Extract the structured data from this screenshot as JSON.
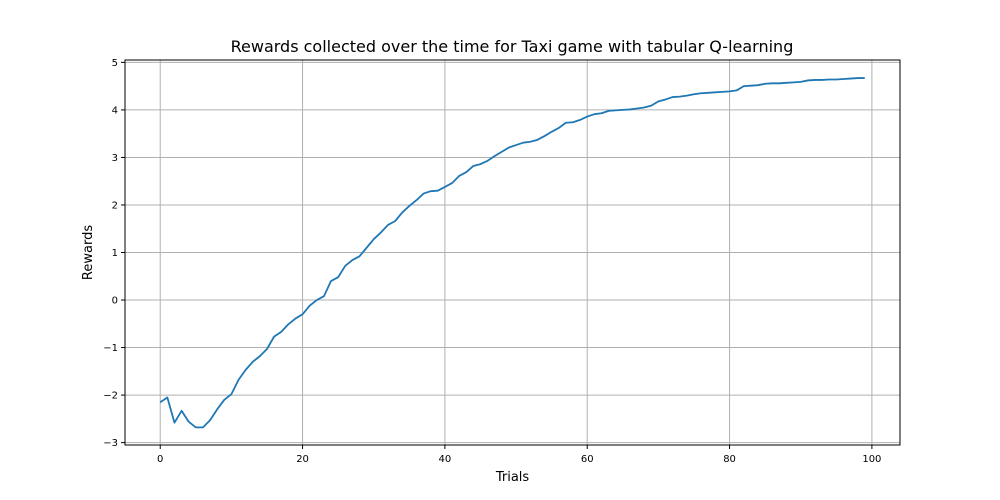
{
  "chart_data": {
    "type": "line",
    "title": "Rewards collected over the time for Taxi game with tabular Q-learning",
    "xlabel": "Trials",
    "ylabel": "Rewards",
    "xlim": [
      -4.95,
      103.95
    ],
    "ylim": [
      -3.05,
      5.05
    ],
    "xticks": [
      0,
      20,
      40,
      60,
      80,
      100
    ],
    "xtick_labels": [
      "0",
      "20",
      "40",
      "60",
      "80",
      "100"
    ],
    "yticks": [
      -3,
      -2,
      -1,
      0,
      1,
      2,
      3,
      4,
      5
    ],
    "ytick_labels": [
      "−3",
      "−2",
      "−1",
      "0",
      "1",
      "2",
      "3",
      "4",
      "5"
    ],
    "grid": true,
    "legend": "none",
    "series": [
      {
        "color": "#1f77b4",
        "x": [
          0,
          1,
          2,
          3,
          4,
          5,
          6,
          7,
          8,
          9,
          10,
          11,
          12,
          13,
          14,
          15,
          16,
          17,
          18,
          19,
          20,
          21,
          22,
          23,
          24,
          25,
          26,
          27,
          28,
          29,
          30,
          31,
          32,
          33,
          34,
          35,
          36,
          37,
          38,
          39,
          40,
          41,
          42,
          43,
          44,
          45,
          46,
          47,
          48,
          49,
          50,
          51,
          52,
          53,
          54,
          55,
          56,
          57,
          58,
          59,
          60,
          61,
          62,
          63,
          64,
          65,
          66,
          67,
          68,
          69,
          70,
          71,
          72,
          73,
          74,
          75,
          76,
          77,
          78,
          79,
          80,
          81,
          82,
          83,
          84,
          85,
          86,
          87,
          88,
          89,
          90,
          91,
          92,
          93,
          94,
          95,
          96,
          97,
          98,
          99
        ],
        "values": [
          -2.15,
          -2.05,
          -2.58,
          -2.33,
          -2.56,
          -2.68,
          -2.68,
          -2.53,
          -2.3,
          -2.1,
          -1.98,
          -1.68,
          -1.47,
          -1.3,
          -1.18,
          -1.03,
          -0.77,
          -0.67,
          -0.51,
          -0.39,
          -0.3,
          -0.12,
          0.0,
          0.08,
          0.4,
          0.48,
          0.72,
          0.84,
          0.92,
          1.1,
          1.28,
          1.42,
          1.58,
          1.66,
          1.84,
          1.98,
          2.1,
          2.24,
          2.29,
          2.3,
          2.38,
          2.46,
          2.61,
          2.69,
          2.82,
          2.86,
          2.93,
          3.03,
          3.12,
          3.21,
          3.26,
          3.31,
          3.33,
          3.37,
          3.45,
          3.54,
          3.62,
          3.73,
          3.74,
          3.79,
          3.86,
          3.91,
          3.93,
          3.98,
          3.99,
          4.0,
          4.01,
          4.03,
          4.05,
          4.09,
          4.18,
          4.22,
          4.27,
          4.28,
          4.3,
          4.33,
          4.35,
          4.36,
          4.37,
          4.38,
          4.39,
          4.41,
          4.5,
          4.51,
          4.52,
          4.55,
          4.56,
          4.56,
          4.57,
          4.58,
          4.59,
          4.62,
          4.63,
          4.63,
          4.64,
          4.64,
          4.65,
          4.66,
          4.67,
          4.67
        ]
      }
    ]
  }
}
